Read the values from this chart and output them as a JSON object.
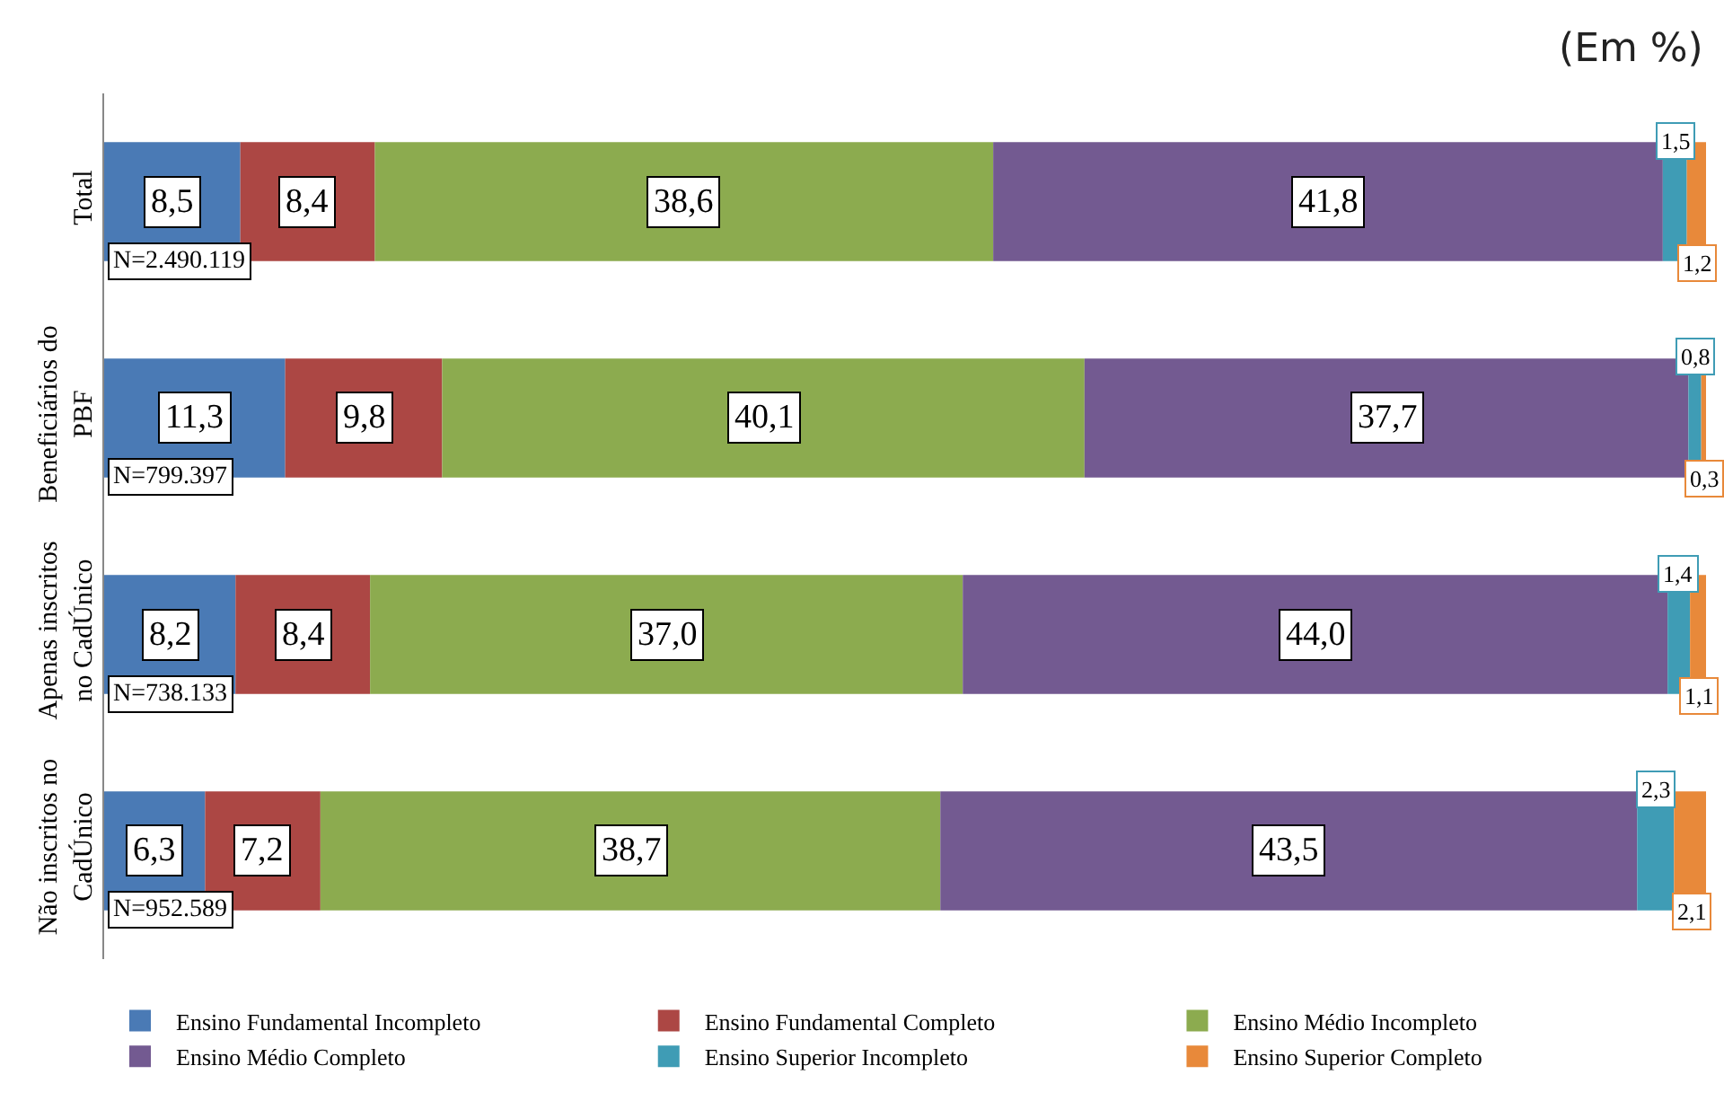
{
  "chart_data": {
    "type": "bar",
    "orientation": "horizontal",
    "stacked": true,
    "tick_labels": "y",
    "legend": "bottom",
    "xlim": [
      0,
      100
    ],
    "categories": [
      "Total",
      "Beneficiários do PBF",
      "Apenas inscritos no CadÚnico",
      "Não inscritos no CadÚnico"
    ],
    "series": [
      {
        "name": "Ensino Fundamental Incompleto",
        "color": "#4a7ab5",
        "values": [
          8.5,
          11.3,
          8.2,
          6.3
        ],
        "value_labels": [
          "8,5",
          "11,3",
          "8,2",
          "6,3"
        ]
      },
      {
        "name": "Ensino Fundamental Completo",
        "color": "#ac4744",
        "values": [
          8.4,
          9.8,
          8.4,
          7.2
        ],
        "value_labels": [
          "8,4",
          "9,8",
          "8,4",
          "7,2"
        ]
      },
      {
        "name": "Ensino Médio Incompleto",
        "color": "#8cab4f",
        "values": [
          38.6,
          40.1,
          37.0,
          38.7
        ],
        "value_labels": [
          "38,6",
          "40,1",
          "37,0",
          "38,7"
        ]
      },
      {
        "name": "Ensino Médio Completo",
        "color": "#735a91",
        "values": [
          41.8,
          37.7,
          44.0,
          43.5
        ],
        "value_labels": [
          "41,8",
          "37,7",
          "44,0",
          "43,5"
        ]
      },
      {
        "name": "Ensino Superior Incompleto",
        "color": "#3f9cb5",
        "values": [
          1.5,
          0.8,
          1.4,
          2.3
        ],
        "value_labels": [
          "1,5",
          "0,8",
          "1,4",
          "2,3"
        ]
      },
      {
        "name": "Ensino Superior Completo",
        "color": "#e8893a",
        "values": [
          1.2,
          0.3,
          1.1,
          2.1
        ],
        "value_labels": [
          "1,2",
          "0,3",
          "1,1",
          "2,1"
        ]
      }
    ],
    "annotations": [
      "(Em %)",
      "N=2.490.119",
      "N=799.397",
      "N=738.133",
      "N=952.589"
    ]
  }
}
